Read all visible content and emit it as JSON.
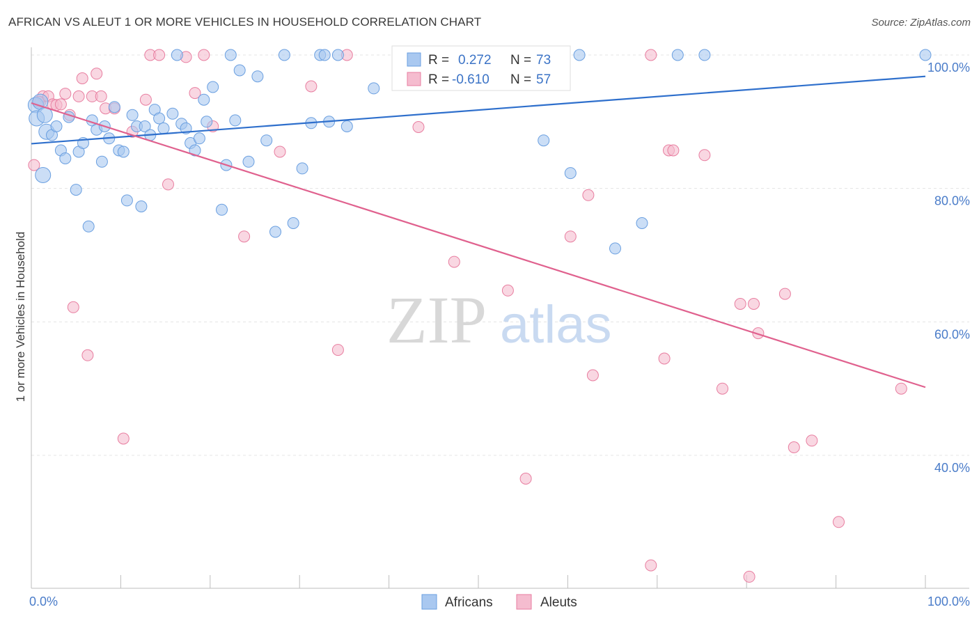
{
  "title": "AFRICAN VS ALEUT 1 OR MORE VEHICLES IN HOUSEHOLD CORRELATION CHART",
  "source": "Source: ZipAtlas.com",
  "watermark": {
    "zip": "ZIP",
    "atlas": "atlas"
  },
  "legend": {
    "rows": [
      {
        "r_label": "R =",
        "r_value": "0.272",
        "n_label": "N =",
        "n_value": "73"
      },
      {
        "r_label": "R =",
        "r_value": "-0.610",
        "n_label": "N =",
        "n_value": "57"
      }
    ]
  },
  "chart_data": {
    "type": "scatter",
    "title": "AFRICAN VS ALEUT 1 OR MORE VEHICLES IN HOUSEHOLD CORRELATION CHART",
    "xlabel": "",
    "ylabel": "1 or more Vehicles in Household",
    "xlim": [
      0,
      100
    ],
    "ylim": [
      20,
      102
    ],
    "x_tick_labels": [
      "0.0%",
      "100.0%"
    ],
    "y_ticks": [
      40,
      60,
      80,
      100
    ],
    "y_tick_labels": [
      "40.0%",
      "60.0%",
      "80.0%",
      "100.0%"
    ],
    "grid": true,
    "legend_position": "bottom-center",
    "series": [
      {
        "name": "Africans",
        "color": "#6a9fe0",
        "fill": "#a9c8f0",
        "trend": {
          "x": [
            0,
            100
          ],
          "y": [
            86.7,
            96.8
          ],
          "color": "#2e6fcc"
        },
        "points": [
          [
            0.5,
            92.5
          ],
          [
            0.6,
            90.5
          ],
          [
            1.3,
            82.0
          ],
          [
            1.7,
            88.5
          ],
          [
            2.3,
            88.0
          ],
          [
            2.8,
            89.3
          ],
          [
            3.3,
            85.7
          ],
          [
            3.8,
            84.5
          ],
          [
            4.2,
            90.7
          ],
          [
            5.0,
            79.8
          ],
          [
            5.3,
            85.5
          ],
          [
            5.8,
            86.8
          ],
          [
            6.4,
            74.3
          ],
          [
            6.8,
            90.2
          ],
          [
            7.3,
            88.8
          ],
          [
            7.9,
            84.0
          ],
          [
            8.2,
            89.3
          ],
          [
            8.7,
            87.5
          ],
          [
            9.3,
            92.2
          ],
          [
            9.8,
            85.7
          ],
          [
            10.3,
            85.5
          ],
          [
            10.7,
            78.2
          ],
          [
            11.3,
            91.0
          ],
          [
            11.8,
            89.3
          ],
          [
            12.3,
            77.3
          ],
          [
            12.7,
            89.3
          ],
          [
            13.3,
            88.0
          ],
          [
            13.8,
            91.8
          ],
          [
            14.3,
            90.5
          ],
          [
            14.8,
            89.0
          ],
          [
            15.8,
            91.2
          ],
          [
            16.3,
            100.0
          ],
          [
            16.8,
            89.7
          ],
          [
            17.3,
            89.0
          ],
          [
            17.8,
            86.8
          ],
          [
            18.3,
            85.7
          ],
          [
            18.8,
            87.5
          ],
          [
            19.3,
            93.3
          ],
          [
            19.6,
            90.0
          ],
          [
            20.3,
            95.2
          ],
          [
            21.3,
            76.8
          ],
          [
            21.8,
            83.5
          ],
          [
            22.3,
            100.0
          ],
          [
            22.8,
            90.2
          ],
          [
            23.3,
            97.7
          ],
          [
            24.3,
            84.0
          ],
          [
            25.3,
            96.8
          ],
          [
            26.3,
            87.2
          ],
          [
            27.3,
            73.5
          ],
          [
            28.3,
            100.0
          ],
          [
            29.3,
            74.8
          ],
          [
            30.3,
            83.0
          ],
          [
            31.3,
            89.8
          ],
          [
            32.3,
            100.0
          ],
          [
            32.8,
            100.0
          ],
          [
            33.3,
            90.0
          ],
          [
            34.3,
            100.0
          ],
          [
            35.3,
            89.3
          ],
          [
            38.3,
            95.0
          ],
          [
            41.3,
            97.5
          ],
          [
            43.3,
            100.0
          ],
          [
            52.3,
            100.0
          ],
          [
            55.3,
            100.0
          ],
          [
            57.3,
            87.2
          ],
          [
            60.3,
            82.3
          ],
          [
            61.3,
            100.0
          ],
          [
            65.3,
            71.0
          ],
          [
            68.3,
            74.8
          ],
          [
            72.3,
            100.0
          ],
          [
            75.3,
            100.0
          ],
          [
            100.0,
            100.0
          ],
          [
            1.0,
            93.0
          ],
          [
            1.5,
            91.0
          ]
        ]
      },
      {
        "name": "Aleuts",
        "color": "#e87ea0",
        "fill": "#f5bccf",
        "trend": {
          "x": [
            0,
            100
          ],
          "y": [
            92.8,
            50.2
          ],
          "color": "#e0618e"
        },
        "points": [
          [
            0.3,
            83.5
          ],
          [
            1.0,
            93.0
          ],
          [
            1.3,
            93.8
          ],
          [
            1.9,
            93.8
          ],
          [
            2.4,
            92.6
          ],
          [
            2.8,
            92.5
          ],
          [
            3.3,
            92.6
          ],
          [
            3.8,
            94.2
          ],
          [
            4.3,
            91.0
          ],
          [
            4.7,
            62.2
          ],
          [
            5.3,
            93.8
          ],
          [
            5.7,
            96.5
          ],
          [
            6.3,
            55.0
          ],
          [
            6.8,
            93.8
          ],
          [
            7.3,
            97.2
          ],
          [
            7.8,
            93.8
          ],
          [
            8.3,
            92.0
          ],
          [
            9.3,
            92.0
          ],
          [
            10.3,
            42.5
          ],
          [
            11.3,
            88.5
          ],
          [
            12.8,
            93.3
          ],
          [
            13.3,
            100.0
          ],
          [
            14.3,
            100.0
          ],
          [
            15.3,
            80.6
          ],
          [
            17.3,
            99.7
          ],
          [
            18.3,
            94.3
          ],
          [
            19.3,
            100.0
          ],
          [
            20.3,
            89.3
          ],
          [
            23.8,
            72.8
          ],
          [
            27.8,
            85.5
          ],
          [
            31.3,
            95.3
          ],
          [
            34.3,
            55.8
          ],
          [
            35.3,
            100.0
          ],
          [
            43.3,
            89.2
          ],
          [
            47.3,
            69.0
          ],
          [
            53.3,
            64.7
          ],
          [
            55.3,
            36.5
          ],
          [
            60.3,
            72.8
          ],
          [
            62.3,
            79.0
          ],
          [
            62.8,
            52.0
          ],
          [
            69.3,
            100.0
          ],
          [
            69.3,
            23.5
          ],
          [
            70.8,
            54.5
          ],
          [
            71.3,
            85.7
          ],
          [
            71.8,
            85.7
          ],
          [
            75.3,
            85.0
          ],
          [
            77.3,
            50.0
          ],
          [
            79.3,
            62.7
          ],
          [
            80.3,
            21.8
          ],
          [
            80.8,
            62.7
          ],
          [
            81.3,
            58.3
          ],
          [
            84.3,
            64.2
          ],
          [
            85.3,
            41.2
          ],
          [
            87.3,
            42.2
          ],
          [
            90.3,
            30.0
          ],
          [
            97.3,
            50.0
          ],
          [
            0.8,
            93.0
          ]
        ]
      }
    ]
  }
}
